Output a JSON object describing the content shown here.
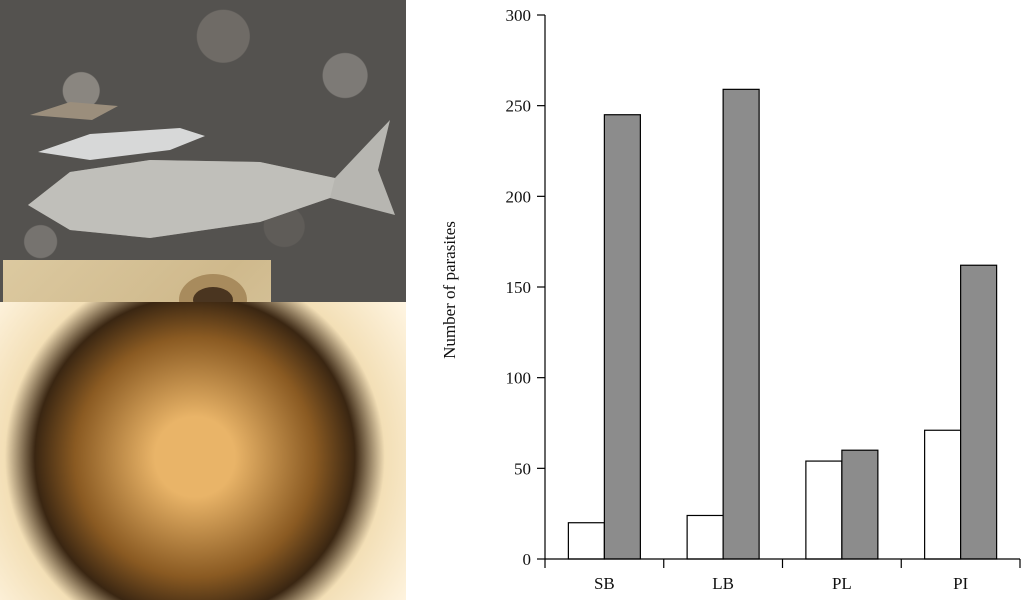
{
  "figure": {
    "panels": [
      "photo-collage",
      "bar-chart"
    ]
  },
  "chart_data": {
    "type": "bar",
    "title": "",
    "xlabel": "",
    "ylabel": "Number of parasites",
    "categories": [
      "SB",
      "LB",
      "PL",
      "PI"
    ],
    "series": [
      {
        "values": [
          20,
          24,
          54,
          71
        ],
        "color": "#ffffff"
      },
      {
        "values": [
          245,
          259,
          60,
          162
        ],
        "color": "#8c8c8c"
      }
    ],
    "ylim": [
      0,
      300
    ],
    "yticks": [
      0,
      50,
      100,
      150,
      200,
      250,
      300
    ],
    "grid": false,
    "legend": "none"
  }
}
